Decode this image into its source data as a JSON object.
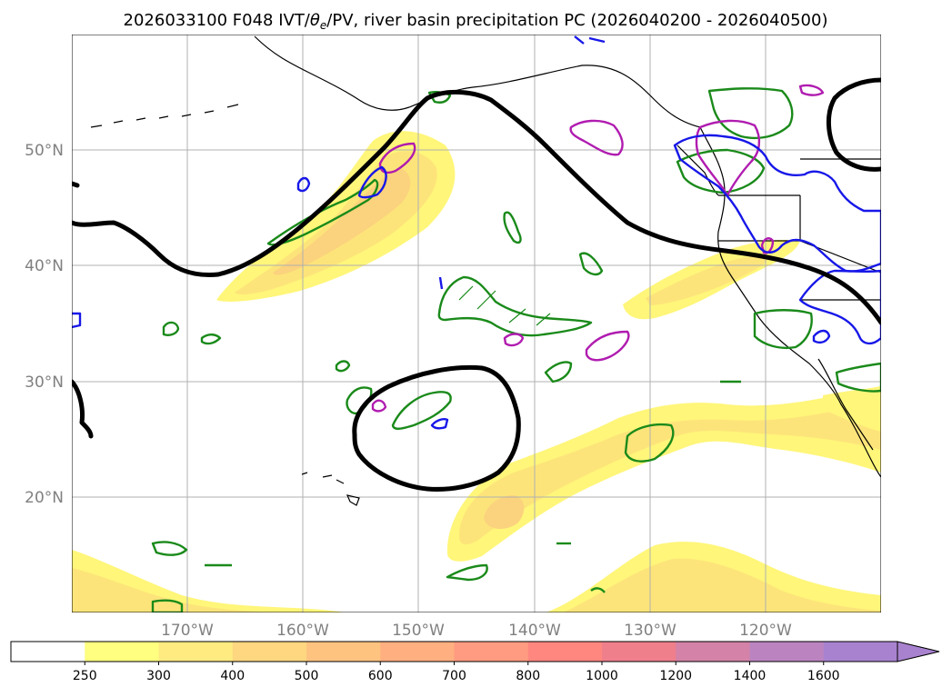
{
  "figure": {
    "title_prefix": "2026033100 F048 IVT/",
    "title_theta": "θ",
    "title_theta_sub": "e",
    "title_suffix": "/PV, river basin precipitation PC (2026040200 - 2026040500)"
  },
  "map": {
    "longitude_labels": [
      "170°W",
      "160°W",
      "150°W",
      "140°W",
      "130°W",
      "120°W"
    ],
    "latitude_labels": [
      "50°N",
      "40°N",
      "30°N",
      "20°N"
    ],
    "longitude_values": [
      -170,
      -160,
      -150,
      -140,
      -130,
      -120
    ],
    "latitude_values": [
      50,
      40,
      30,
      20
    ],
    "lon_range": [
      -180,
      -110
    ],
    "lat_range": [
      10,
      60
    ],
    "gridlines": true,
    "fields": [
      {
        "name": "IVT",
        "style": "filled yellow-orange shading"
      },
      {
        "name": "theta_e",
        "style": "black thick contour"
      },
      {
        "name": "PV",
        "style": "blue contour"
      },
      {
        "name": "precipitation PC",
        "style": "green and magenta hatched contours"
      }
    ],
    "colors": {
      "theta_e": "#000000",
      "pv": "#1717e8",
      "precip_green": "#1a8a1a",
      "precip_magenta": "#b01cb0",
      "ivt_low": "#fff67a",
      "ivt_mid": "#fde47a",
      "ivt_high": "#fbd27d"
    }
  },
  "colorbar": {
    "levels": [
      "250",
      "300",
      "400",
      "500",
      "600",
      "700",
      "800",
      "1000",
      "1200",
      "1400",
      "1600"
    ],
    "colors": [
      "#ffffff",
      "#ffff80",
      "#ffeb80",
      "#ffd780",
      "#ffc380",
      "#ffaf80",
      "#ff9b80",
      "#ff8780",
      "#f07f8c",
      "#d482a8",
      "#bb84c0",
      "#a882cf"
    ],
    "extend": "max"
  }
}
